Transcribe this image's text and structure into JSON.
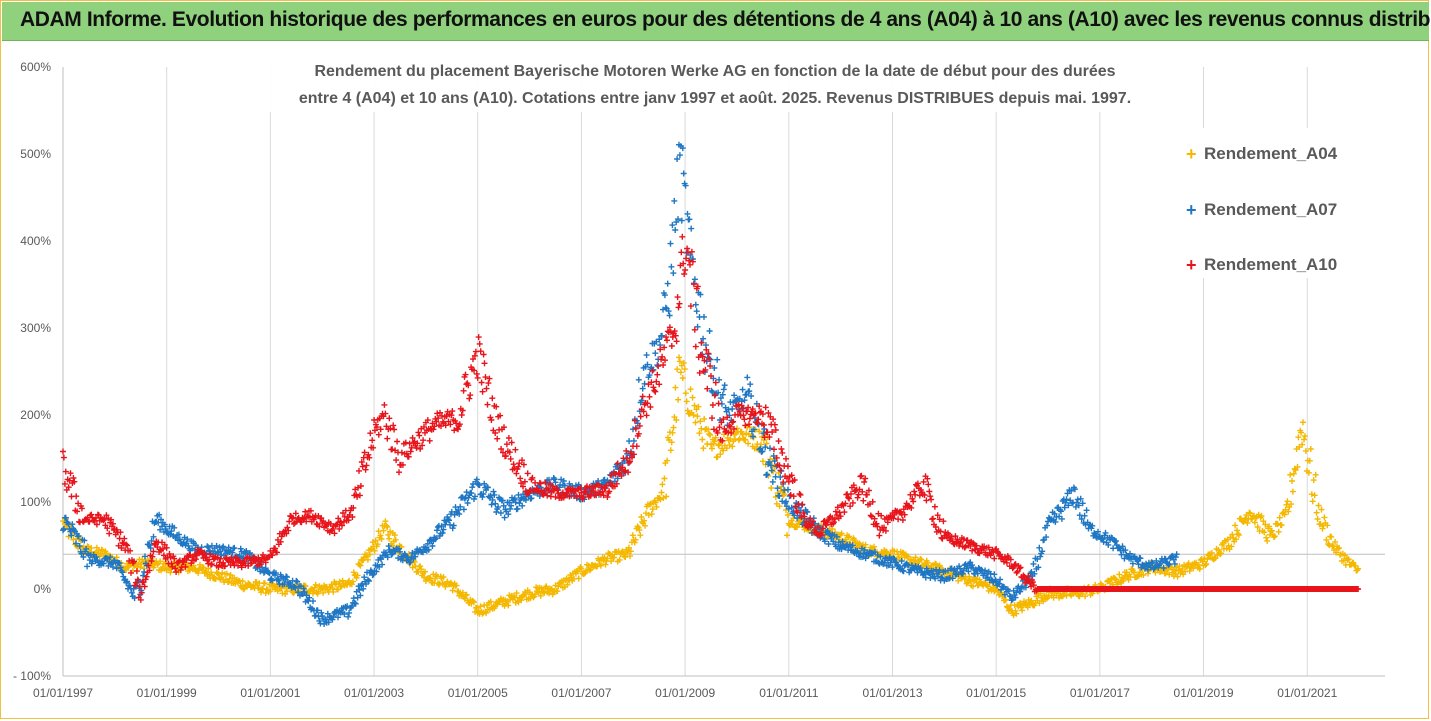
{
  "header": {
    "title": "ADAM Informe. Evolution historique des performances en euros pour des détentions de 4 ans (A04) à 10 ans (A10) avec les revenus connus distribués"
  },
  "chart_data": {
    "type": "scatter",
    "title_line1": "Rendement du placement Bayerische Motoren Werke AG en fonction de la date de début pour des durées",
    "title_line2": "entre 4 (A04) et 10 ans (A10). Cotations entre janv 1997 et août. 2025. Revenus DISTRIBUES depuis mai. 1997.",
    "x_axis": {
      "range": [
        1997.0,
        2022.5
      ],
      "tick_values": [
        1997,
        1999,
        2001,
        2003,
        2005,
        2007,
        2009,
        2011,
        2013,
        2015,
        2017,
        2019,
        2021
      ],
      "tick_labels": [
        "01/01/1997",
        "01/01/1999",
        "01/01/2001",
        "01/01/2003",
        "01/01/2005",
        "01/01/2007",
        "01/01/2009",
        "01/01/2011",
        "01/01/2013",
        "01/01/2015",
        "01/01/2017",
        "01/01/2019",
        "01/01/2021"
      ]
    },
    "y_axis": {
      "range": [
        -100,
        600
      ],
      "tick_values": [
        600,
        500,
        400,
        300,
        200,
        100,
        0,
        -100
      ],
      "tick_labels": [
        "600%",
        "500%",
        "400%",
        "300%",
        "200%",
        "100%",
        "0%",
        "- 100%"
      ],
      "reference_line": 40
    },
    "grid": "vertical",
    "legend_position": "right",
    "series": [
      {
        "name": "Rendement_A04",
        "color": "#f5b800",
        "x": [
          1997.0,
          1997.4,
          1997.8,
          1998.2,
          1998.6,
          1999.0,
          1999.5,
          2000.0,
          2000.5,
          2001.0,
          2001.5,
          2002.0,
          2002.5,
          2002.9,
          2003.2,
          2003.6,
          2004.0,
          2004.5,
          2005.0,
          2005.5,
          2006.0,
          2006.5,
          2007.0,
          2007.5,
          2007.9,
          2008.3,
          2008.6,
          2008.9,
          2009.2,
          2009.5,
          2010.0,
          2010.5,
          2011.0,
          2011.5,
          2012.0,
          2012.5,
          2013.0,
          2013.5,
          2014.0,
          2014.5,
          2015.0,
          2015.3,
          2015.7,
          2016.0,
          2016.5,
          2017.0,
          2017.5,
          2018.0,
          2018.5,
          2019.0,
          2019.5,
          2019.9,
          2020.3,
          2020.6,
          2020.9,
          2021.2,
          2021.5,
          2021.8,
          2022.0
        ],
        "y": [
          75,
          45,
          40,
          25,
          30,
          25,
          25,
          15,
          5,
          0,
          0,
          0,
          5,
          40,
          70,
          40,
          15,
          5,
          -25,
          -15,
          -5,
          0,
          20,
          35,
          40,
          90,
          115,
          250,
          200,
          160,
          180,
          170,
          80,
          70,
          60,
          45,
          40,
          30,
          20,
          10,
          0,
          -25,
          -15,
          -5,
          -5,
          0,
          15,
          25,
          20,
          30,
          55,
          90,
          60,
          85,
          190,
          90,
          50,
          30,
          20
        ]
      },
      {
        "name": "Rendement_A07",
        "color": "#1f77c4",
        "x": [
          1997.0,
          1997.5,
          1998.0,
          1998.4,
          1998.8,
          1999.2,
          1999.6,
          2000.0,
          2000.5,
          2001.0,
          2001.5,
          2002.0,
          2002.5,
          2002.9,
          2003.3,
          2003.7,
          2004.0,
          2004.5,
          2005.0,
          2005.5,
          2006.0,
          2006.5,
          2007.0,
          2007.5,
          2007.9,
          2008.2,
          2008.5,
          2008.7,
          2008.9,
          2009.1,
          2009.4,
          2009.8,
          2010.2,
          2010.6,
          2011.0,
          2011.5,
          2012.0,
          2012.5,
          2013.0,
          2013.5,
          2014.0,
          2014.5,
          2015.0,
          2015.3,
          2015.7,
          2016.0,
          2016.5,
          2016.8,
          2017.2,
          2017.6,
          2018.0,
          2018.5
        ],
        "y": [
          80,
          35,
          30,
          -10,
          80,
          60,
          45,
          45,
          40,
          15,
          5,
          -35,
          -25,
          15,
          45,
          35,
          50,
          80,
          120,
          90,
          110,
          120,
          110,
          120,
          150,
          250,
          280,
          350,
          490,
          380,
          280,
          200,
          220,
          150,
          100,
          70,
          50,
          40,
          30,
          20,
          15,
          25,
          10,
          -10,
          15,
          70,
          110,
          70,
          55,
          35,
          25,
          35
        ]
      },
      {
        "name": "Rendement_A10",
        "color": "#e8141b",
        "x": [
          1997.0,
          1997.4,
          1997.8,
          1998.2,
          1998.5,
          1998.8,
          1999.2,
          1999.6,
          2000.0,
          2000.5,
          2001.0,
          2001.4,
          2001.8,
          2002.2,
          2002.6,
          2003.0,
          2003.2,
          2003.5,
          2003.8,
          2004.2,
          2004.6,
          2005.0,
          2005.3,
          2005.6,
          2006.0,
          2006.5,
          2007.0,
          2007.5,
          2007.9,
          2008.2,
          2008.5,
          2008.8,
          2009.0,
          2009.3,
          2009.7,
          2010.0,
          2010.5,
          2011.0,
          2011.3,
          2011.6,
          2012.0,
          2012.4,
          2012.8,
          2013.2,
          2013.6,
          2014.0,
          2014.5,
          2015.0,
          2015.3,
          2015.6,
          2015.8,
          2016.5,
          2017.0,
          2018.0,
          2019.0,
          2020.0,
          2021.0,
          2022.0
        ],
        "y": [
          140,
          80,
          80,
          50,
          -5,
          55,
          25,
          40,
          30,
          30,
          35,
          80,
          85,
          70,
          90,
          180,
          200,
          150,
          170,
          190,
          195,
          270,
          200,
          160,
          120,
          110,
          110,
          115,
          150,
          210,
          250,
          300,
          400,
          280,
          180,
          200,
          200,
          130,
          80,
          65,
          90,
          120,
          70,
          90,
          120,
          60,
          50,
          40,
          30,
          10,
          0,
          0,
          0,
          0,
          0,
          0,
          0,
          0
        ]
      }
    ]
  }
}
